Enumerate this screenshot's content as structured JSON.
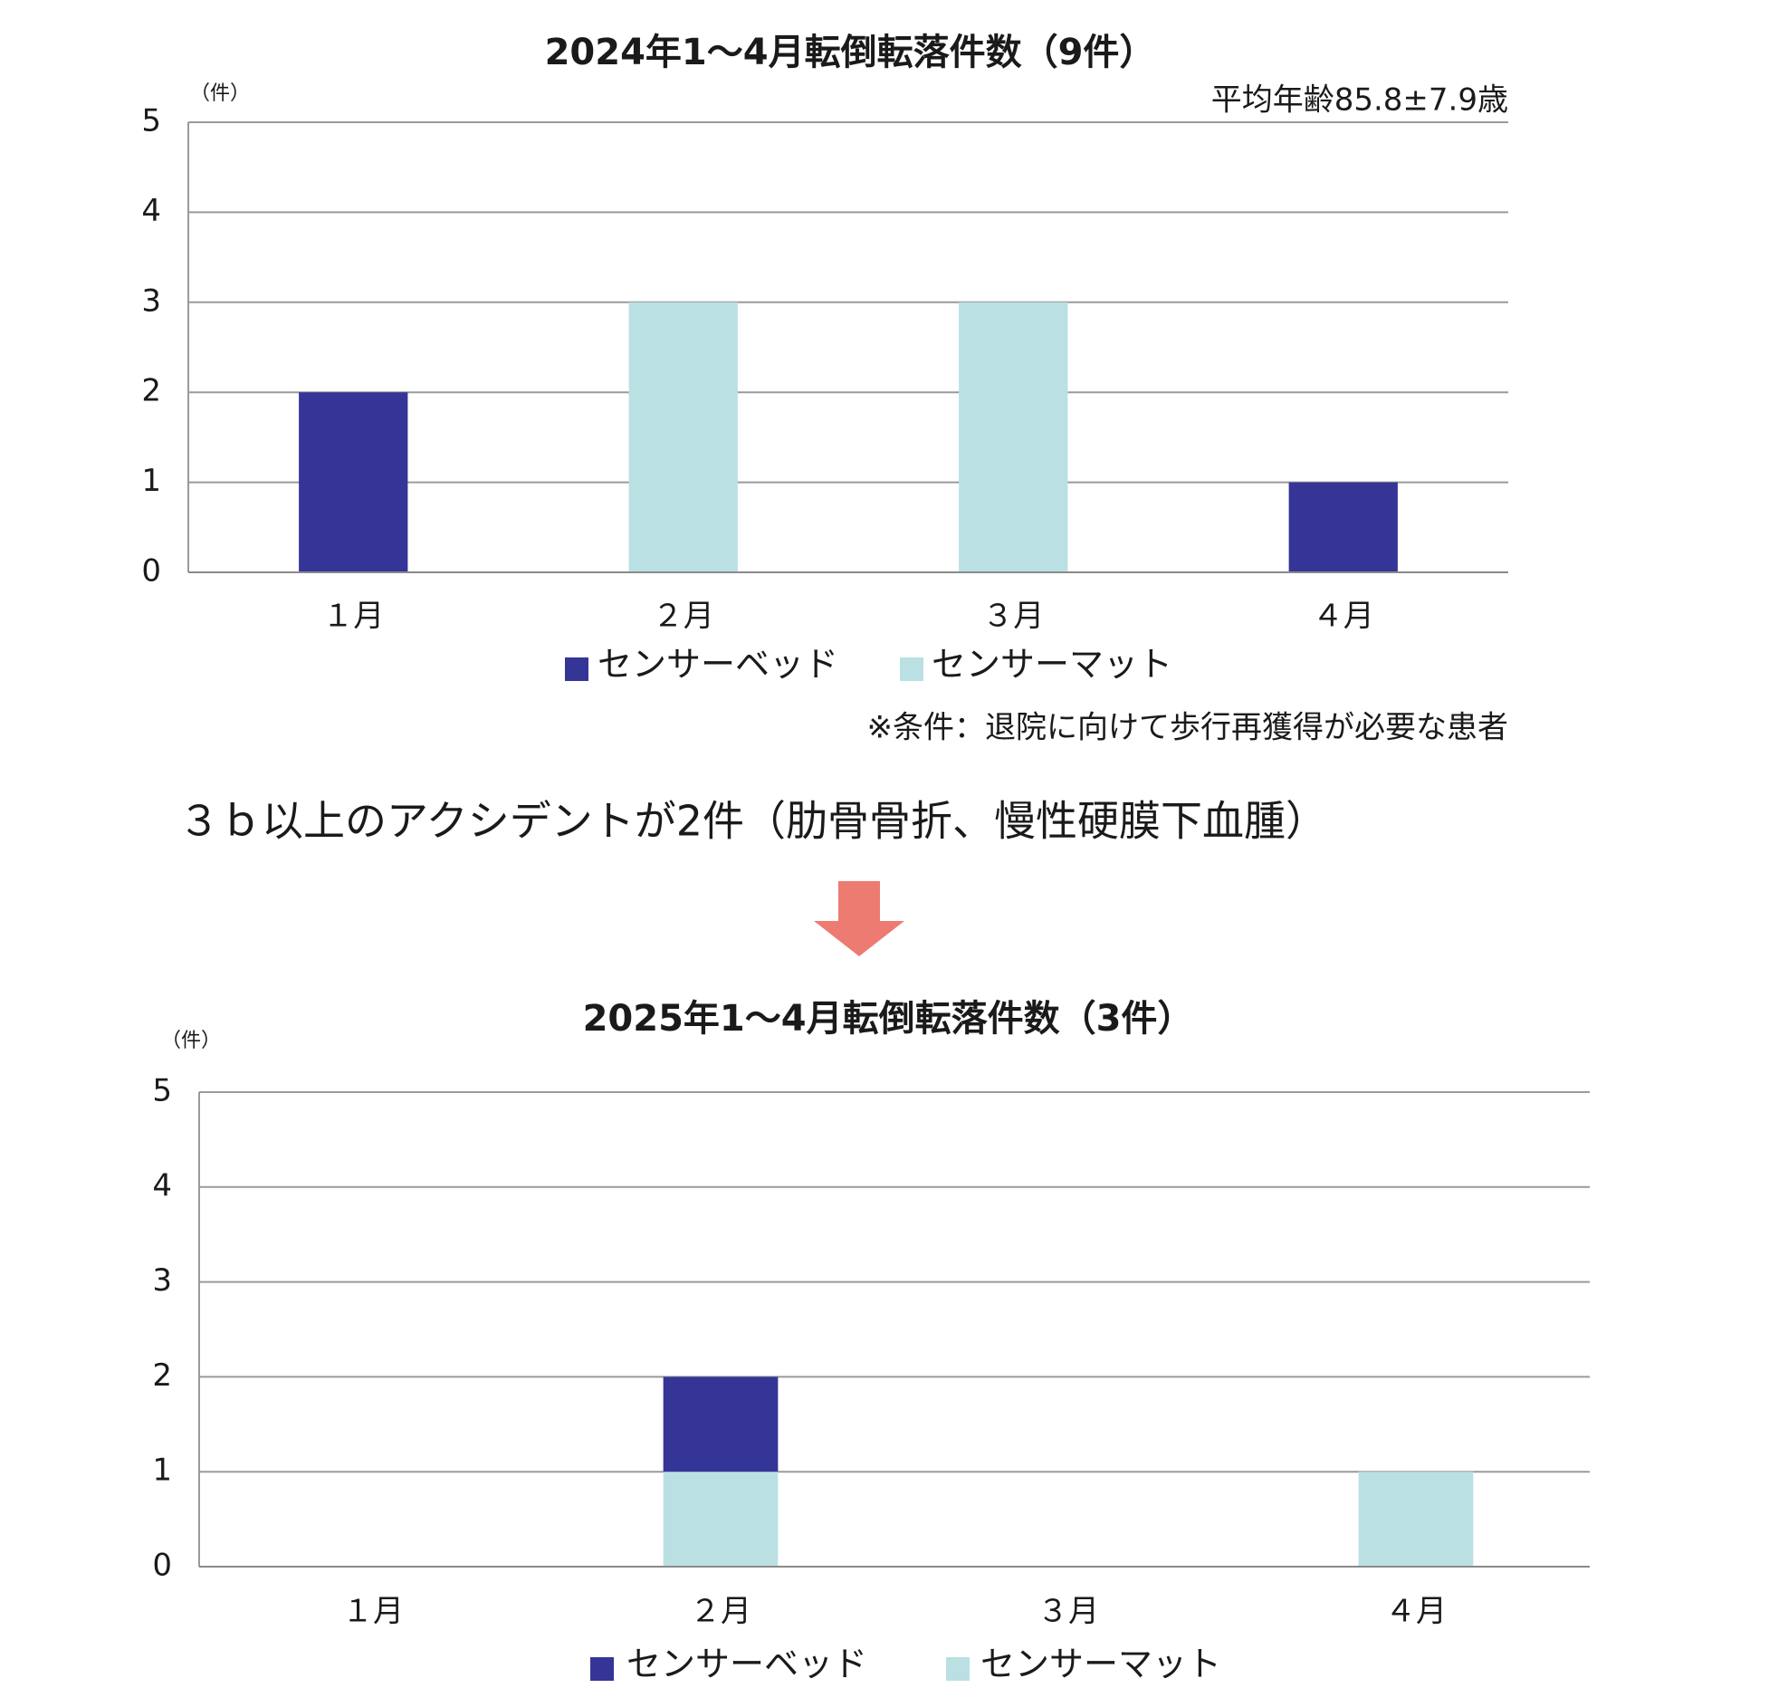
{
  "summary": "３ｂ以上のアクシデントが2件（肋骨骨折、慢性硬膜下血腫）",
  "chart_data": [
    {
      "type": "bar",
      "stacked": true,
      "title": "2024年1～4月転倒転落件数（9件）",
      "subtitle": "平均年齢85.8±7.9歳",
      "y_unit": "（件）",
      "note": "※条件：退院に向けて歩行再獲得が必要な患者",
      "categories": [
        "１月",
        "２月",
        "３月",
        "４月"
      ],
      "series": [
        {
          "name": "センサーベッド",
          "color": "#353597",
          "values": [
            2,
            0,
            0,
            1
          ]
        },
        {
          "name": "センサーマット",
          "color": "#bbe0e3",
          "values": [
            0,
            3,
            3,
            0
          ]
        }
      ],
      "ylim": [
        0,
        5
      ],
      "yticks": [
        0,
        1,
        2,
        3,
        4,
        5
      ],
      "grid": true
    },
    {
      "type": "bar",
      "stacked": true,
      "title": "2025年1～4月転倒転落件数（3件）",
      "y_unit": "（件）",
      "categories": [
        "１月",
        "２月",
        "３月",
        "４月"
      ],
      "series": [
        {
          "name": "センサーベッド",
          "color": "#353597",
          "values": [
            0,
            1,
            0,
            0
          ]
        },
        {
          "name": "センサーマット",
          "color": "#bbe0e3",
          "values": [
            0,
            1,
            0,
            1
          ]
        }
      ],
      "ylim": [
        0,
        5
      ],
      "yticks": [
        0,
        1,
        2,
        3,
        4,
        5
      ],
      "grid": true
    }
  ]
}
